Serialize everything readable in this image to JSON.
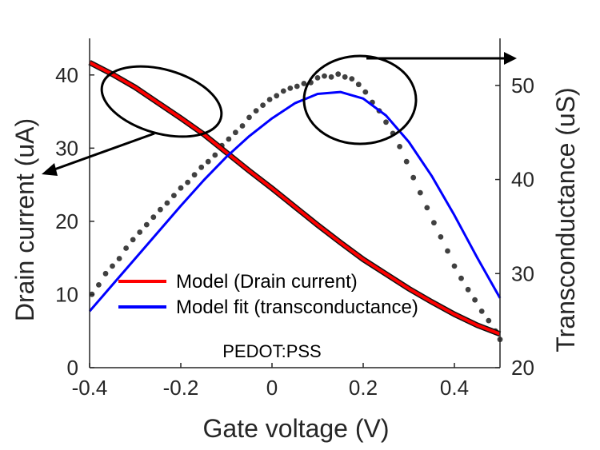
{
  "chart_data": {
    "type": "line",
    "title": "",
    "xlabel": "Gate voltage (V)",
    "ylabel_left": "Drain current (uA)",
    "ylabel_right": "Transconductance (uS)",
    "xlim": [
      -0.4,
      0.5
    ],
    "ylim_left": [
      0,
      45
    ],
    "ylim_right": [
      20,
      55
    ],
    "x_ticks": [
      -0.4,
      -0.2,
      0,
      0.2,
      0.4
    ],
    "x_tick_labels": [
      "-0.4",
      "-0.2",
      "0",
      "0.2",
      "0.4"
    ],
    "y_left_ticks": [
      0,
      10,
      20,
      30,
      40
    ],
    "y_left_tick_labels": [
      "0",
      "10",
      "20",
      "30",
      "40"
    ],
    "y_right_ticks": [
      20,
      30,
      40,
      50
    ],
    "y_right_tick_labels": [
      "20",
      "30",
      "40",
      "50"
    ],
    "grid": false,
    "annotation": "PEDOT:PSS",
    "legend": {
      "placement": "lower-left",
      "entries": [
        {
          "label": "Model (Drain current)",
          "color": "#ff0000"
        },
        {
          "label": "Model fit (transconductance)",
          "color": "#0000ff"
        }
      ]
    },
    "series": [
      {
        "name": "Model (Drain current)",
        "axis": "left",
        "color": "#ff0000",
        "x": [
          -0.4,
          -0.35,
          -0.3,
          -0.25,
          -0.2,
          -0.15,
          -0.1,
          -0.05,
          0,
          0.05,
          0.1,
          0.15,
          0.2,
          0.25,
          0.3,
          0.35,
          0.4,
          0.45,
          0.5
        ],
        "y": [
          41.7,
          40.1,
          38.3,
          36.2,
          34.1,
          31.9,
          29.4,
          26.9,
          24.5,
          22.0,
          19.5,
          17.1,
          14.8,
          12.8,
          10.8,
          9.0,
          7.3,
          5.8,
          4.6
        ]
      },
      {
        "name": "Model fit (transconductance)",
        "axis": "right",
        "color": "#0000ff",
        "x": [
          -0.4,
          -0.35,
          -0.3,
          -0.25,
          -0.2,
          -0.15,
          -0.1,
          -0.05,
          0,
          0.05,
          0.1,
          0.15,
          0.2,
          0.25,
          0.3,
          0.35,
          0.4,
          0.45,
          0.5
        ],
        "y": [
          26.0,
          28.8,
          31.6,
          34.4,
          37.2,
          39.9,
          42.4,
          44.6,
          46.5,
          48.1,
          49.1,
          49.3,
          48.6,
          46.8,
          44.0,
          40.4,
          36.2,
          31.7,
          27.4
        ]
      },
      {
        "name": "",
        "axis": "right",
        "kind": "scatter",
        "color": "#404040",
        "x": [
          -0.395,
          -0.38,
          -0.365,
          -0.35,
          -0.335,
          -0.32,
          -0.305,
          -0.29,
          -0.275,
          -0.26,
          -0.245,
          -0.23,
          -0.215,
          -0.2,
          -0.185,
          -0.17,
          -0.155,
          -0.14,
          -0.125,
          -0.11,
          -0.095,
          -0.08,
          -0.065,
          -0.05,
          -0.035,
          -0.02,
          -0.005,
          0.01,
          0.025,
          0.04,
          0.055,
          0.07,
          0.085,
          0.1,
          0.115,
          0.13,
          0.145,
          0.16,
          0.175,
          0.19,
          0.205,
          0.22,
          0.235,
          0.25,
          0.265,
          0.28,
          0.295,
          0.31,
          0.325,
          0.34,
          0.355,
          0.37,
          0.385,
          0.4,
          0.415,
          0.43,
          0.445,
          0.46,
          0.475,
          0.49,
          0.5
        ],
        "y": [
          27.8,
          28.8,
          30.0,
          30.8,
          31.6,
          32.7,
          33.6,
          34.4,
          35.2,
          36.0,
          36.8,
          37.5,
          38.3,
          39.1,
          39.7,
          40.5,
          41.3,
          41.9,
          42.6,
          43.6,
          44.3,
          45.0,
          45.7,
          46.6,
          47.3,
          47.9,
          48.5,
          48.9,
          49.4,
          49.7,
          49.9,
          50.2,
          50.3,
          50.8,
          51.0,
          50.9,
          51.2,
          50.9,
          50.7,
          50.1,
          49.3,
          48.2,
          47.3,
          46.1,
          44.9,
          43.5,
          41.9,
          40.2,
          38.6,
          37.0,
          35.4,
          33.9,
          32.4,
          30.8,
          29.5,
          28.3,
          27.2,
          26.0,
          25.0,
          23.9,
          23.0
        ]
      }
    ]
  }
}
